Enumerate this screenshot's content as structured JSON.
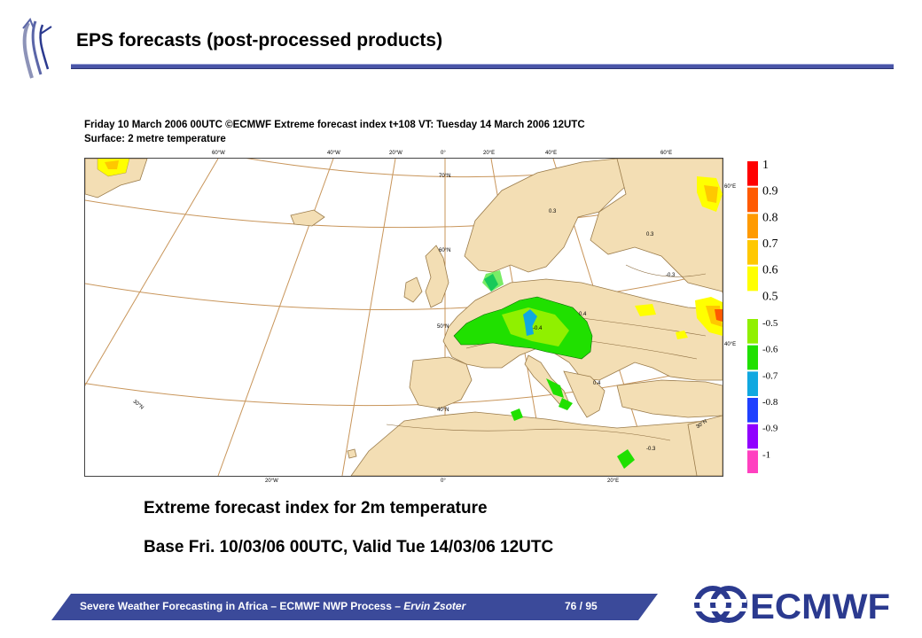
{
  "slide": {
    "title": "EPS forecasts (post-processed products)"
  },
  "map": {
    "heading_line1": "Friday 10 March 2006 00UTC ©ECMWF Extreme forecast index t+108 VT: Tuesday 14 March 2006 12UTC",
    "heading_line2": "Surface: 2 metre temperature",
    "top_lon_labels": [
      "60°W",
      "40°W",
      "20°W",
      "0°",
      "20°E",
      "40°E",
      "60°E"
    ],
    "bottom_lon_labels": [
      "20°W",
      "0°",
      "20°E"
    ],
    "lat_labels": [
      "70°N",
      "60°N",
      "50°N",
      "40°N",
      "30°N"
    ],
    "edge_lat_labels": [
      "60°E",
      "40°E",
      "30°N"
    ],
    "contour_labels": [
      "0.3",
      "0.4",
      "0.3",
      "-0.3",
      "-0.4",
      "0.4",
      "-0.3"
    ]
  },
  "legend": {
    "entries": [
      {
        "label": "1",
        "color": "#ff0000"
      },
      {
        "label": "0.9",
        "color": "#ff5a00"
      },
      {
        "label": "0.8",
        "color": "#ff9a00"
      },
      {
        "label": "0.7",
        "color": "#ffc800"
      },
      {
        "label": "0.6",
        "color": "#ffff00"
      },
      {
        "label": "0.5",
        "color": "#ffffff"
      },
      {
        "label": "-0.5",
        "color": "#90f000"
      },
      {
        "label": "-0.6",
        "color": "#20e000"
      },
      {
        "label": "-0.7",
        "color": "#10a8e0"
      },
      {
        "label": "-0.8",
        "color": "#2040ff"
      },
      {
        "label": "-0.9",
        "color": "#9000ff"
      },
      {
        "label": "-1",
        "color": "#ff40c0"
      }
    ]
  },
  "caption": {
    "line1": "Extreme forecast index for 2m temperature",
    "line2": "Base Fri. 10/03/06 00UTC, Valid Tue 14/03/06 12UTC"
  },
  "footer": {
    "text_main": "Severe Weather Forecasting in Africa – ECMWF NWP Process – ",
    "text_author": "Ervin Zsoter",
    "page": "76 / 95"
  },
  "brand": {
    "logo_text": "ECMWF",
    "accent_color": "#3b4a9a"
  }
}
